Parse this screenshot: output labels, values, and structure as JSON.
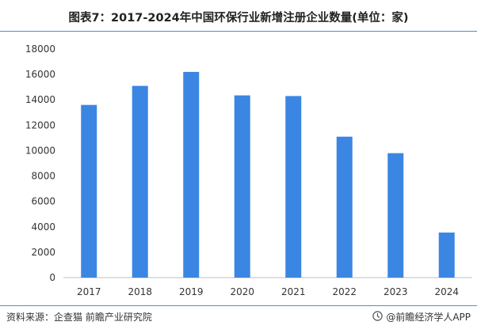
{
  "title": "图表7：2017-2024年中国环保行业新增注册企业数量(单位：家)",
  "source": "资料来源：企查猫 前瞻产业研究院",
  "brand": "@前瞻经济学人APP",
  "icons": {
    "brand_logo": "qianzhan-logo-icon"
  },
  "colors": {
    "bar": "#3b86e3",
    "rule": "#4a8ed6",
    "axis": "#bfbfbf"
  },
  "chart_data": {
    "type": "bar",
    "categories": [
      "2017",
      "2018",
      "2019",
      "2020",
      "2021",
      "2022",
      "2023",
      "2024"
    ],
    "values": [
      13600,
      15100,
      16200,
      14350,
      14300,
      11100,
      9800,
      3550
    ],
    "yticks": [
      "0",
      "2000",
      "4000",
      "6000",
      "8000",
      "10000",
      "12000",
      "14000",
      "16000",
      "18000"
    ],
    "ylim": [
      0,
      18000
    ],
    "title": "",
    "xlabel": "",
    "ylabel": "",
    "grid": false,
    "legend": "none"
  }
}
